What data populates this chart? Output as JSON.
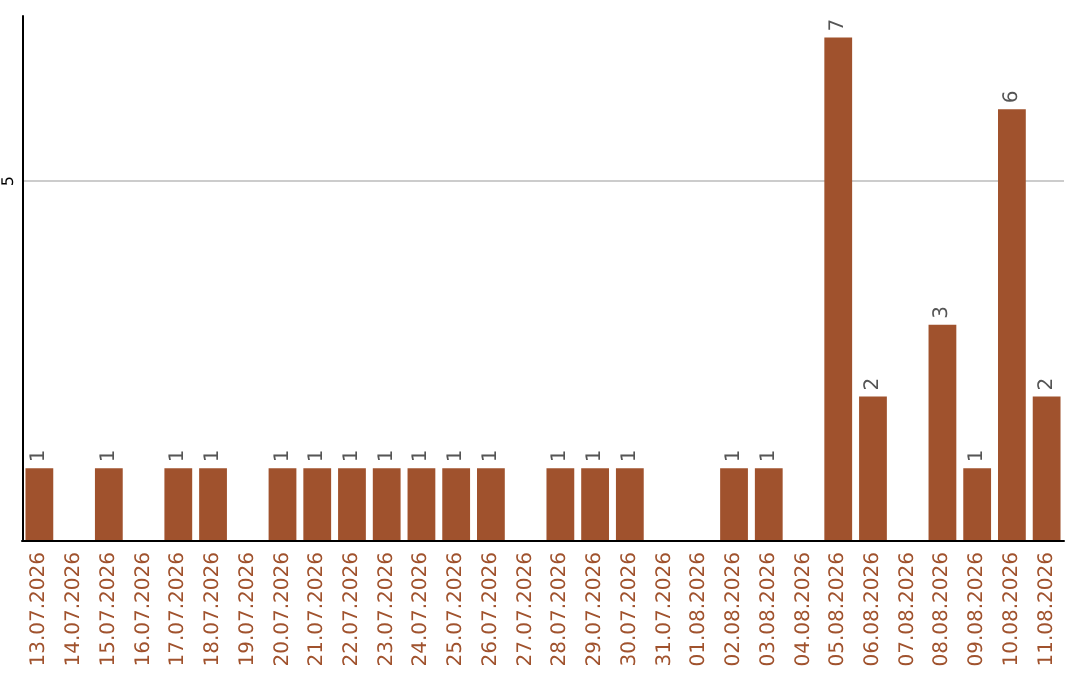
{
  "chart_data": {
    "type": "bar",
    "categories": [
      "13.07.2026",
      "14.07.2026",
      "15.07.2026",
      "16.07.2026",
      "17.07.2026",
      "18.07.2026",
      "19.07.2026",
      "20.07.2026",
      "21.07.2026",
      "22.07.2026",
      "23.07.2026",
      "24.07.2026",
      "25.07.2026",
      "26.07.2026",
      "27.07.2026",
      "28.07.2026",
      "29.07.2026",
      "30.07.2026",
      "31.07.2026",
      "01.08.2026",
      "02.08.2026",
      "03.08.2026",
      "04.08.2026",
      "05.08.2026",
      "06.08.2026",
      "07.08.2026",
      "08.08.2026",
      "09.08.2026",
      "10.08.2026",
      "11.08.2026"
    ],
    "values": [
      1,
      0,
      1,
      0,
      1,
      1,
      0,
      1,
      1,
      1,
      1,
      1,
      1,
      1,
      0,
      1,
      1,
      1,
      0,
      0,
      1,
      1,
      0,
      7,
      2,
      0,
      3,
      1,
      6,
      2
    ],
    "value_labels": [
      "1",
      null,
      "1",
      null,
      "1",
      "1",
      null,
      "1",
      "1",
      "1",
      "1",
      "1",
      "1",
      "1",
      null,
      "1",
      "1",
      "1",
      null,
      null,
      "1",
      "1",
      null,
      "7",
      "2",
      null,
      "3",
      "1",
      "6",
      "2"
    ],
    "color": "#a0522d",
    "ylim": [
      0,
      7.3
    ],
    "yticks": [
      5
    ],
    "grid": "y"
  }
}
